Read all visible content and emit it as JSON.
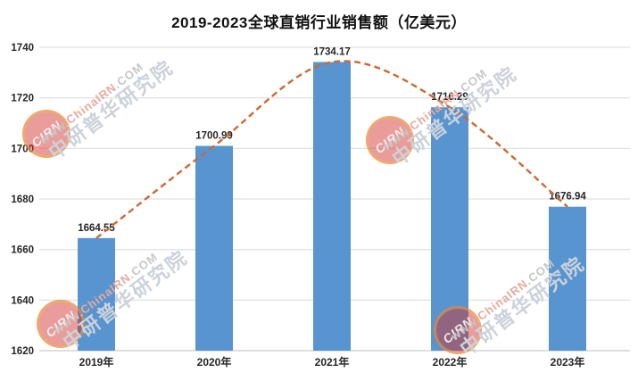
{
  "chart_data": {
    "type": "bar",
    "title": "2019-2023全球直销行业销售额（亿美元）",
    "categories": [
      "2019年",
      "2020年",
      "2021年",
      "2022年",
      "2023年"
    ],
    "values": [
      1664.55,
      1700.99,
      1734.17,
      1716.29,
      1676.94
    ],
    "data_labels": [
      "1664.55",
      "1700.99",
      "1734.17",
      "1716.29",
      "1676.94"
    ],
    "xlabel": "",
    "ylabel": "",
    "ylim": [
      1620,
      1740
    ],
    "yticks": [
      1620,
      1640,
      1660,
      1680,
      1700,
      1720,
      1740
    ],
    "grid": true,
    "legend": false,
    "trendline": true,
    "colors": {
      "bar": "#5794d0",
      "trendline": "#cb6a33",
      "gridline": "#d9d9d9",
      "axis_line": "#bfbfbf",
      "label_text": "#262626",
      "title_text": "#111111"
    }
  },
  "watermark": {
    "logo_text": "CIRN",
    "url_prefix": "www.",
    "url_brand": "ChinaIRN",
    "url_suffix": ".COM",
    "cn_text": "中研普华研究院",
    "logo_red": "#d0302a",
    "ring_yellow": "#f4ba3e"
  }
}
